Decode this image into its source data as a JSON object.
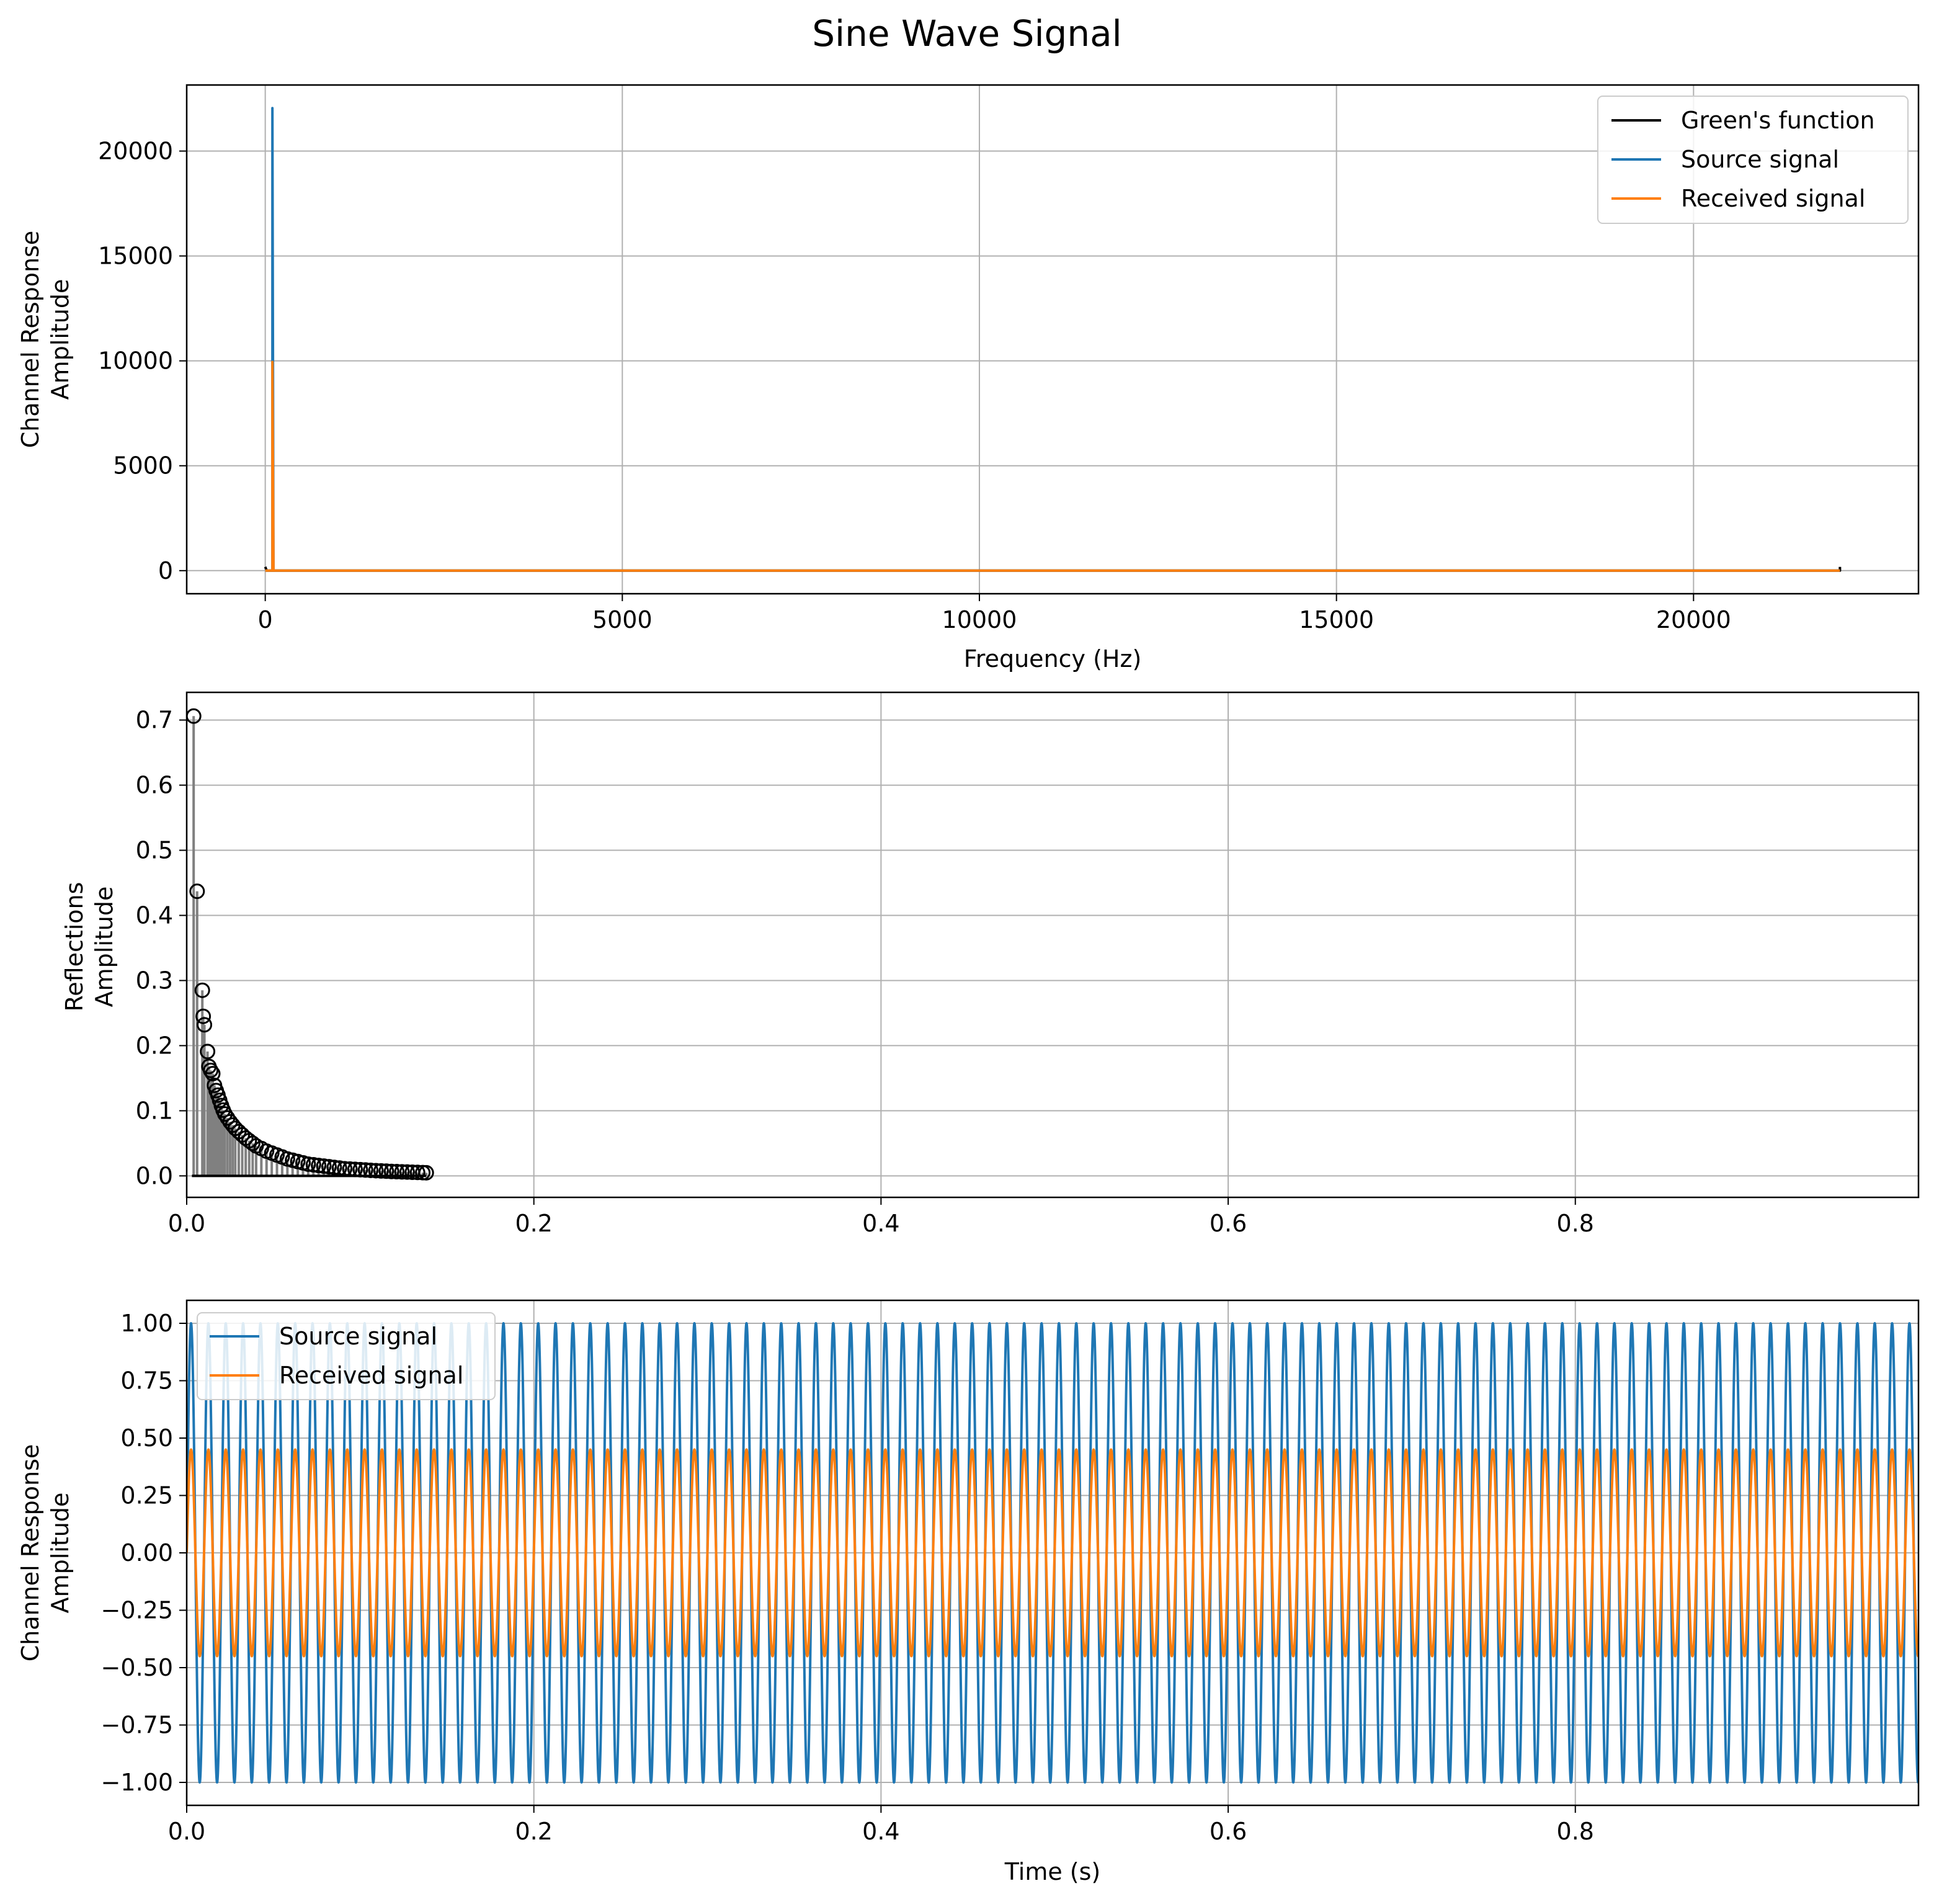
{
  "figure": {
    "title": "Sine Wave Signal"
  },
  "colors": {
    "green": "#000000",
    "source": "#1f77b4",
    "received": "#ff7f0e",
    "stem": "#808080",
    "grid": "#b0b0b0"
  },
  "chart_data": [
    {
      "type": "line",
      "title": "",
      "xlabel": "Frequency (Hz)",
      "ylabel": [
        "Channel Response",
        "Amplitude"
      ],
      "xlim": [
        -1100,
        23150
      ],
      "ylim": [
        -1100,
        23150
      ],
      "xticks": [
        0,
        5000,
        10000,
        15000,
        20000
      ],
      "xtick_labels": [
        "0",
        "5000",
        "10000",
        "15000",
        "20000"
      ],
      "yticks": [
        0,
        5000,
        10000,
        15000,
        20000
      ],
      "ytick_labels": [
        "0",
        "5000",
        "10000",
        "15000",
        "20000"
      ],
      "grid": true,
      "legend": "top-right",
      "series": [
        {
          "name": "Green's function",
          "color": "#000000",
          "description": "near-zero magnitude across all frequencies with tiny marks at 0 Hz and 22050 Hz",
          "points": [
            [
              0,
              180
            ],
            [
              20,
              0
            ],
            [
              22050,
              0
            ],
            [
              22050,
              180
            ]
          ]
        },
        {
          "name": "Source signal",
          "color": "#1f77b4",
          "description": "single spectral peak of about 22050 at 100 Hz, zero elsewhere",
          "points": [
            [
              0,
              0
            ],
            [
              100,
              0
            ],
            [
              100,
              22050
            ],
            [
              115,
              0
            ],
            [
              22050,
              0
            ]
          ]
        },
        {
          "name": "Received signal",
          "color": "#ff7f0e",
          "description": "single spectral peak of about 10000 at 100 Hz, zero elsewhere",
          "points": [
            [
              0,
              0
            ],
            [
              100,
              0
            ],
            [
              100,
              9950
            ],
            [
              115,
              0
            ],
            [
              22050,
              0
            ]
          ]
        }
      ]
    },
    {
      "type": "scatter",
      "title": "",
      "xlabel": "",
      "ylabel": [
        "Reflections",
        "Amplitude"
      ],
      "xlim": [
        0,
        0.9977
      ],
      "ylim": [
        -0.033,
        0.7425
      ],
      "xticks": [
        0,
        0.2,
        0.4,
        0.6,
        0.8
      ],
      "xtick_labels": [
        "0.0",
        "0.2",
        "0.4",
        "0.6",
        "0.8"
      ],
      "yticks": [
        0,
        0.1,
        0.2,
        0.3,
        0.4,
        0.5,
        0.6,
        0.7
      ],
      "ytick_labels": [
        "0.0",
        "0.1",
        "0.2",
        "0.3",
        "0.4",
        "0.5",
        "0.6",
        "0.7"
      ],
      "grid": true,
      "legend": "none",
      "description": "stem plot of reflection amplitudes decaying roughly as 1/t, from about 0.71 at t=0.004 s down to near 0 by t=0.14 s",
      "stems": [
        [
          0.004,
          0.706
        ],
        [
          0.006,
          0.437
        ],
        [
          0.009,
          0.285
        ],
        [
          0.0095,
          0.245
        ],
        [
          0.0102,
          0.232
        ],
        [
          0.012,
          0.191
        ],
        [
          0.0128,
          0.168
        ],
        [
          0.0138,
          0.162
        ],
        [
          0.015,
          0.157
        ],
        [
          0.016,
          0.139
        ],
        [
          0.017,
          0.131
        ],
        [
          0.018,
          0.124
        ],
        [
          0.019,
          0.116
        ],
        [
          0.02,
          0.108
        ],
        [
          0.021,
          0.101
        ],
        [
          0.022,
          0.095
        ],
        [
          0.0235,
          0.089
        ],
        [
          0.025,
          0.083
        ],
        [
          0.0265,
          0.078
        ],
        [
          0.028,
          0.073
        ],
        [
          0.03,
          0.068
        ],
        [
          0.032,
          0.063
        ],
        [
          0.034,
          0.058
        ],
        [
          0.036,
          0.054
        ],
        [
          0.038,
          0.05
        ],
        [
          0.04,
          0.046
        ],
        [
          0.043,
          0.042
        ],
        [
          0.046,
          0.038
        ],
        [
          0.049,
          0.035
        ],
        [
          0.052,
          0.032
        ],
        [
          0.055,
          0.029
        ],
        [
          0.058,
          0.026
        ],
        [
          0.061,
          0.024
        ],
        [
          0.064,
          0.022
        ],
        [
          0.067,
          0.02
        ],
        [
          0.07,
          0.018
        ],
        [
          0.073,
          0.017
        ],
        [
          0.076,
          0.016
        ],
        [
          0.079,
          0.015
        ],
        [
          0.082,
          0.014
        ],
        [
          0.085,
          0.013
        ],
        [
          0.088,
          0.012
        ],
        [
          0.091,
          0.011
        ],
        [
          0.094,
          0.0105
        ],
        [
          0.097,
          0.01
        ],
        [
          0.1,
          0.0095
        ],
        [
          0.103,
          0.009
        ],
        [
          0.106,
          0.0085
        ],
        [
          0.109,
          0.008
        ],
        [
          0.112,
          0.0076
        ],
        [
          0.115,
          0.0072
        ],
        [
          0.118,
          0.0068
        ],
        [
          0.121,
          0.0065
        ],
        [
          0.124,
          0.0062
        ],
        [
          0.127,
          0.0059
        ],
        [
          0.13,
          0.0056
        ],
        [
          0.133,
          0.0053
        ],
        [
          0.136,
          0.005
        ],
        [
          0.138,
          0.0048
        ]
      ],
      "baseline": {
        "from": 0.003,
        "to": 0.138,
        "y": 0
      }
    },
    {
      "type": "line",
      "title": "",
      "xlabel": "Time (s)",
      "ylabel": [
        "Channel Response",
        "Amplitude"
      ],
      "xlim": [
        0,
        0.9977
      ],
      "ylim": [
        -1.1,
        1.1
      ],
      "xticks": [
        0,
        0.2,
        0.4,
        0.6,
        0.8
      ],
      "xtick_labels": [
        "0.0",
        "0.2",
        "0.4",
        "0.6",
        "0.8"
      ],
      "yticks": [
        -1.0,
        -0.75,
        -0.5,
        -0.25,
        0.0,
        0.25,
        0.5,
        0.75,
        1.0
      ],
      "ytick_labels": [
        "−1.00",
        "−0.75",
        "−0.50",
        "−0.25",
        "0.00",
        "0.25",
        "0.50",
        "0.75",
        "1.00"
      ],
      "grid": true,
      "legend": "top-left",
      "series": [
        {
          "name": "Source signal",
          "color": "#1f77b4",
          "frequency_hz": 100,
          "amplitude": 1.0,
          "t_range": [
            0,
            0.9977
          ]
        },
        {
          "name": "Received signal",
          "color": "#ff7f0e",
          "frequency_hz": 100,
          "amplitude": 0.45,
          "t_range": [
            0,
            0.9977
          ]
        }
      ]
    }
  ]
}
